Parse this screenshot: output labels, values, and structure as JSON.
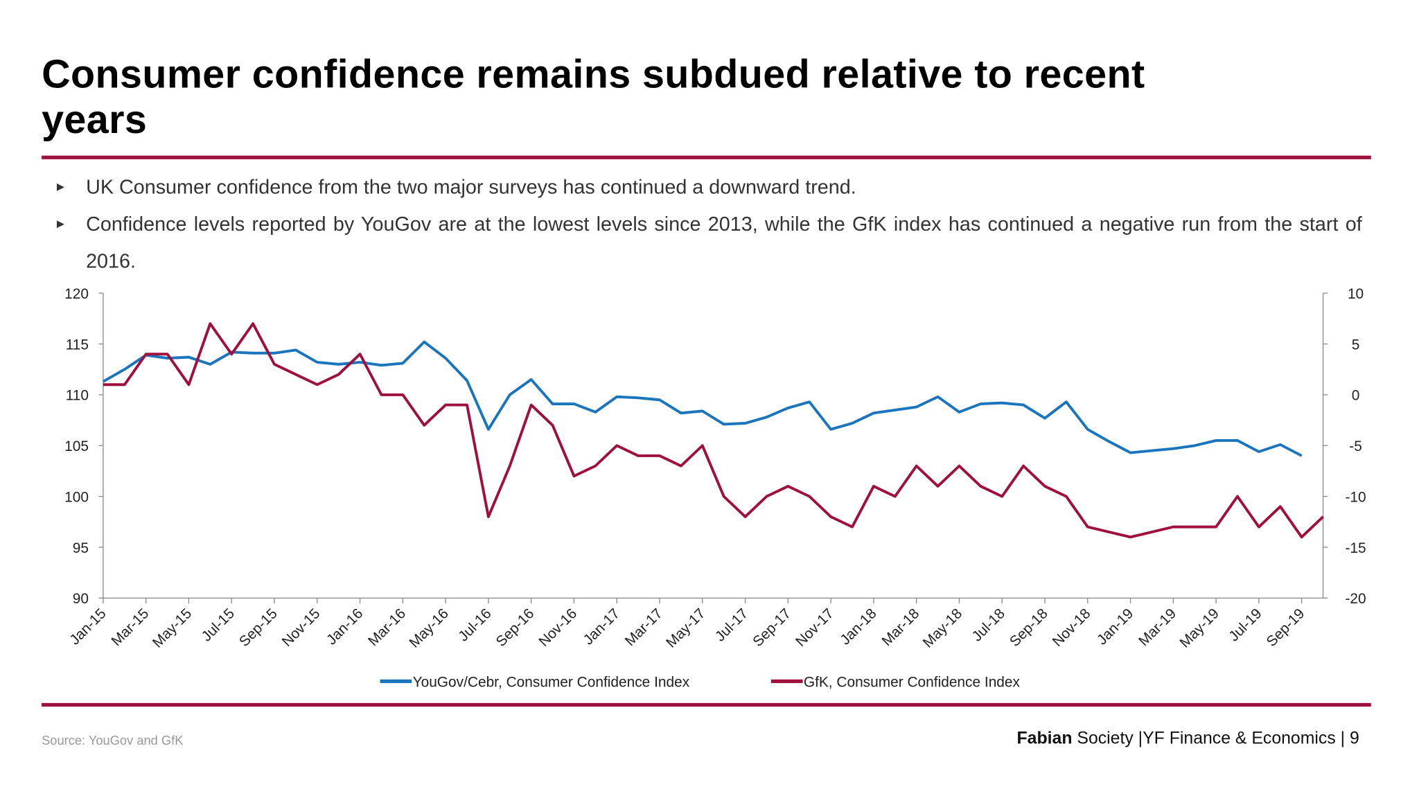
{
  "header": {
    "title": [
      "Consumer confidence remains subdued relative to recent",
      "years"
    ],
    "bullets": [
      "UK Consumer confidence from the two major surveys has continued a downward trend.",
      "Confidence levels reported by YouGov are at the lowest levels since 2013, while the GfK index has continued a negative run from the start of 2016."
    ]
  },
  "chart_data": {
    "type": "line",
    "categories": [
      "Jan-15",
      null,
      "Mar-15",
      null,
      "May-15",
      null,
      "Jul-15",
      null,
      "Sep-15",
      null,
      "Nov-15",
      null,
      "Jan-16",
      null,
      "Mar-16",
      null,
      "May-16",
      null,
      "Jul-16",
      null,
      "Sep-16",
      null,
      "Nov-16",
      null,
      "Jan-17",
      null,
      "Mar-17",
      null,
      "May-17",
      null,
      "Jul-17",
      null,
      "Sep-17",
      null,
      "Nov-17",
      null,
      "Jan-18",
      null,
      "Mar-18",
      null,
      "May-18",
      null,
      "Jul-18",
      null,
      "Sep-18",
      null,
      "Nov-18",
      null,
      "Jan-19",
      null,
      "Mar-19",
      null,
      "May-19",
      null,
      "Jul-19",
      null,
      "Sep-19",
      null
    ],
    "series": [
      {
        "name": "YouGov/Cebr, Consumer Confidence Index",
        "color": "#1b75bc",
        "values": [
          111.3,
          112.5,
          113.9,
          113.6,
          113.7,
          113.0,
          114.2,
          114.1,
          114.1,
          114.4,
          113.2,
          113.0,
          113.2,
          112.9,
          113.1,
          115.2,
          113.6,
          111.4,
          106.6,
          110.0,
          111.5,
          109.1,
          109.1,
          108.3,
          109.8,
          109.7,
          109.5,
          108.2,
          108.4,
          107.1,
          107.2,
          107.8,
          108.7,
          109.3,
          106.6,
          107.2,
          108.2,
          108.5,
          108.8,
          109.8,
          108.3,
          109.1,
          109.2,
          109.0,
          107.7,
          109.3,
          106.6,
          105.4,
          104.3,
          104.5,
          104.7,
          105.0,
          105.5,
          105.5,
          104.4,
          105.1,
          104.0,
          null
        ]
      },
      {
        "name": "GfK, Consumer Confidence Index",
        "color": "#a0103f",
        "axis": "y2",
        "values": [
          1,
          1,
          4,
          4,
          1,
          7,
          4,
          7,
          3,
          2,
          1,
          2,
          4,
          0,
          0,
          -3,
          -1,
          -1,
          -12,
          -7,
          -1,
          -3,
          -8,
          -7,
          -5,
          -6,
          -6,
          -7,
          -5,
          -10,
          -12,
          -10,
          -9,
          -10,
          -12,
          -13,
          -9,
          -10,
          -7,
          -9,
          -7,
          -9,
          -10,
          -7,
          -9,
          -10,
          -13,
          -13.5,
          -14,
          -13.5,
          -13,
          -13,
          -13,
          -10,
          -13,
          -11,
          -14,
          -12
        ]
      }
    ],
    "ylim": [
      90,
      120
    ],
    "yticks": [
      90,
      95,
      100,
      105,
      110,
      115,
      120
    ],
    "y2lim": [
      -20,
      10
    ],
    "y2ticks": [
      -20,
      -15,
      -10,
      -5,
      0,
      5,
      10
    ],
    "grid": false,
    "legend": "bottom"
  },
  "footer": {
    "source": "Source: YouGov and GfK",
    "brand": "Fabian",
    "org": "Society |YF Finance & Economics |",
    "page": "9"
  }
}
